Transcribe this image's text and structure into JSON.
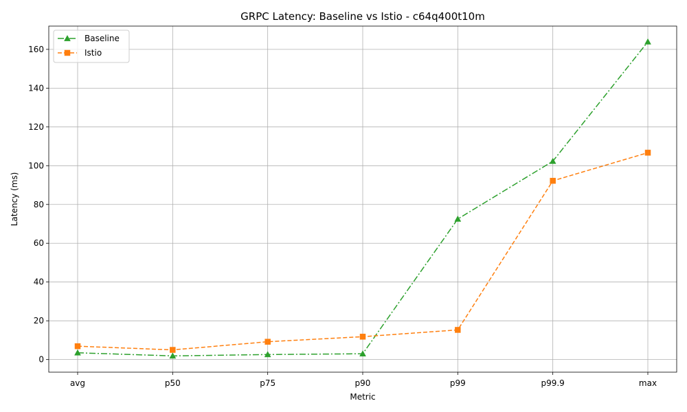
{
  "chart_data": {
    "type": "line",
    "title": "GRPC Latency: Baseline vs Istio - c64q400t10m",
    "xlabel": "Metric",
    "ylabel": "Latency (ms)",
    "categories": [
      "avg",
      "p50",
      "p75",
      "p90",
      "p99",
      "p99.9",
      "max"
    ],
    "ylim": [
      -6.5,
      172
    ],
    "yticks": [
      0,
      20,
      40,
      60,
      80,
      100,
      120,
      140,
      160
    ],
    "grid": true,
    "legend_position": "top-left",
    "series": [
      {
        "name": "Baseline",
        "values": [
          3.5,
          1.9,
          2.6,
          3.0,
          72.5,
          102.3,
          163.9
        ],
        "color": "#2ca02c",
        "marker": "triangle",
        "linestyle": "dash-dot"
      },
      {
        "name": "Istio",
        "values": [
          6.9,
          5.0,
          9.2,
          11.8,
          15.3,
          92.2,
          106.7
        ],
        "color": "#ff7f0e",
        "marker": "square",
        "linestyle": "dashed"
      }
    ]
  }
}
